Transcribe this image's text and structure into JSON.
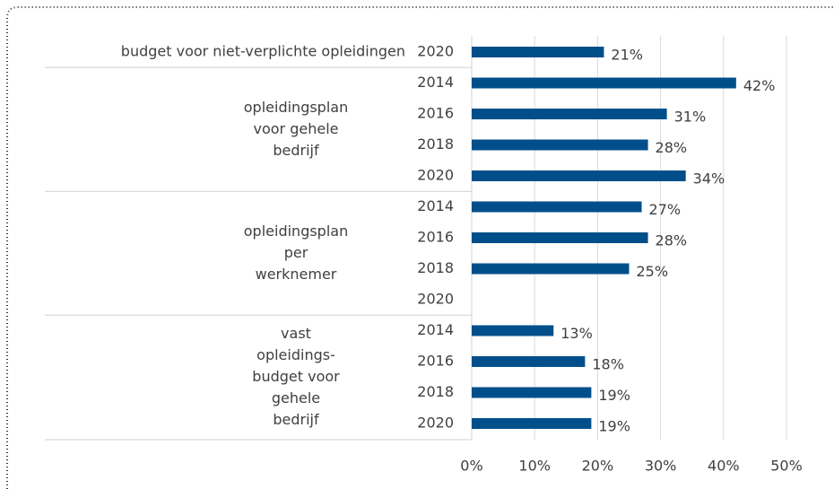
{
  "chart_data": {
    "type": "bar",
    "orientation": "horizontal",
    "color": "#004f8b",
    "groups": [
      {
        "label": [
          "budget voor niet-verplichte opleidingen"
        ],
        "categories": [
          "2020"
        ],
        "values": [
          21
        ],
        "value_labels": [
          "21%"
        ]
      },
      {
        "label": [
          "opleidingsplan",
          "voor gehele",
          "bedrijf"
        ],
        "categories": [
          "2014",
          "2016",
          "2018",
          "2020"
        ],
        "values": [
          42,
          31,
          28,
          34
        ],
        "value_labels": [
          "42%",
          "31%",
          "28%",
          "34%"
        ]
      },
      {
        "label": [
          "opleidingsplan",
          "per",
          "werknemer"
        ],
        "categories": [
          "2014",
          "2016",
          "2018",
          "2020"
        ],
        "values": [
          27,
          28,
          25,
          null
        ],
        "value_labels": [
          "27%",
          "28%",
          "25%",
          null
        ]
      },
      {
        "label": [
          "vast",
          "opleidings-",
          "budget voor",
          "gehele",
          "bedrijf"
        ],
        "categories": [
          "2014",
          "2016",
          "2018",
          "2020"
        ],
        "values": [
          13,
          18,
          19,
          19
        ],
        "value_labels": [
          "13%",
          "18%",
          "19%",
          "19%"
        ]
      }
    ],
    "xlim": [
      0,
      50
    ],
    "xticks": [
      {
        "value": 0,
        "label": "0%"
      },
      {
        "value": 10,
        "label": "10%"
      },
      {
        "value": 20,
        "label": "20%"
      },
      {
        "value": 30,
        "label": "30%"
      },
      {
        "value": 40,
        "label": "40%"
      },
      {
        "value": 50,
        "label": "50%"
      }
    ],
    "grid": true
  }
}
